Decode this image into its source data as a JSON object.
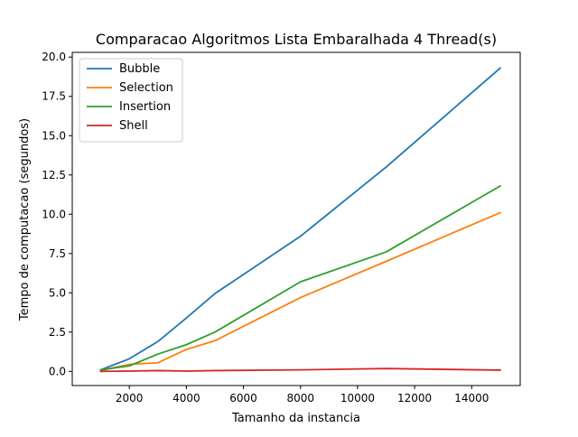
{
  "chart_data": {
    "type": "line",
    "title": "Comparacao Algoritmos Lista Embaralhada 4 Thread(s)",
    "xlabel": "Tamanho da instancia",
    "ylabel": "Tempo de computacao (segundos)",
    "xlim": [
      0,
      15700
    ],
    "ylim": [
      -0.9,
      20.3
    ],
    "xticks": [
      2000,
      4000,
      6000,
      8000,
      10000,
      12000,
      14000
    ],
    "xtick_labels": [
      "2000",
      "4000",
      "6000",
      "8000",
      "10000",
      "12000",
      "14000"
    ],
    "yticks": [
      0,
      2.5,
      5,
      7.5,
      10,
      12.5,
      15,
      17.5,
      20
    ],
    "ytick_labels": [
      "0.0",
      "2.5",
      "5.0",
      "7.5",
      "10.0",
      "12.5",
      "15.0",
      "17.5",
      "20.0"
    ],
    "grid": false,
    "legend_position": "top-left",
    "x": [
      1000,
      2000,
      3000,
      4000,
      5000,
      8000,
      11000,
      15000
    ],
    "series": [
      {
        "name": "Bubble",
        "color": "#1f77b4",
        "values": [
          0.1,
          0.8,
          1.9,
          3.4,
          4.95,
          8.6,
          13.0,
          19.3
        ]
      },
      {
        "name": "Selection",
        "color": "#ff7f0e",
        "values": [
          0.05,
          0.45,
          0.55,
          1.4,
          1.95,
          4.7,
          7.0,
          10.1
        ]
      },
      {
        "name": "Insertion",
        "color": "#2ca02c",
        "values": [
          0.1,
          0.35,
          1.1,
          1.7,
          2.5,
          5.7,
          7.6,
          11.8
        ]
      },
      {
        "name": "Shell",
        "color": "#d62728",
        "values": [
          0.0,
          0.02,
          0.05,
          0.02,
          0.05,
          0.1,
          0.18,
          0.08
        ]
      }
    ]
  }
}
